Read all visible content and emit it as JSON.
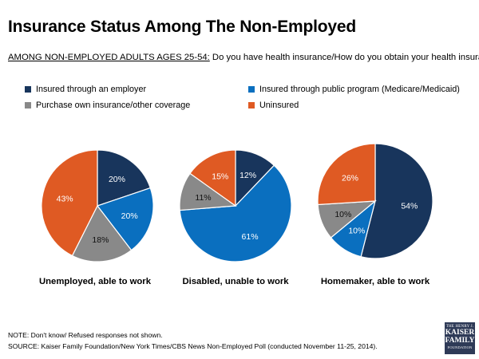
{
  "title": "Insurance Status Among The Non-Employed",
  "question": {
    "lead": "AMONG NON-EMPLOYED ADULTS AGES 25-54:",
    "text": " Do you have health insurance/How do you obtain your health insurance?"
  },
  "legend": [
    {
      "label": "Insured through an employer",
      "color": "#18355c"
    },
    {
      "label": "Insured through public program (Medicare/Medicaid)",
      "color": "#0a6fbf"
    },
    {
      "label": "Purchase own insurance/other coverage",
      "color": "#898989"
    },
    {
      "label": "Uninsured",
      "color": "#df5a23"
    }
  ],
  "chart_data": [
    {
      "type": "pie",
      "title": "Unemployed, able to work",
      "categories": [
        "Insured through an employer",
        "Insured through public program (Medicare/Medicaid)",
        "Purchase own insurance/other coverage",
        "Uninsured"
      ],
      "values": [
        20,
        20,
        18,
        43
      ],
      "labels": [
        "20%",
        "20%",
        "18%",
        "43%"
      ]
    },
    {
      "type": "pie",
      "title": "Disabled, unable to work",
      "categories": [
        "Insured through an employer",
        "Insured through public program (Medicare/Medicaid)",
        "Purchase own insurance/other coverage",
        "Uninsured"
      ],
      "values": [
        12,
        61,
        11,
        15
      ],
      "labels": [
        "12%",
        "61%",
        "11%",
        "15%"
      ]
    },
    {
      "type": "pie",
      "title": "Homemaker, able to work",
      "categories": [
        "Insured through an employer",
        "Insured through public program (Medicare/Medicaid)",
        "Purchase own insurance/other coverage",
        "Uninsured"
      ],
      "values": [
        54,
        10,
        10,
        26
      ],
      "labels": [
        "54%",
        "10%",
        "10%",
        "26%"
      ]
    }
  ],
  "notes": {
    "note": "NOTE: Don't know/ Refused responses not shown.",
    "source": "SOURCE: Kaiser Family Foundation/New York Times/CBS News Non-Employed Poll (conducted November 11-25, 2014)."
  },
  "logo": {
    "line1": "THE HENRY J.",
    "line2": "KAISER",
    "line3": "FAMILY",
    "line4": "FOUNDATION"
  }
}
